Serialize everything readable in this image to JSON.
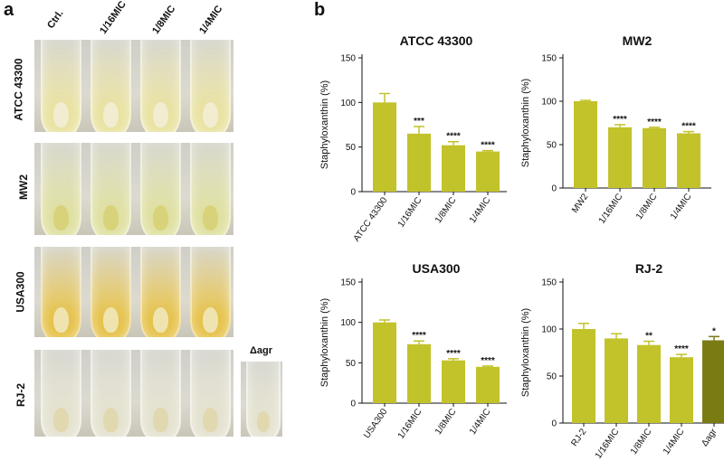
{
  "panels": {
    "a": "a",
    "b": "b"
  },
  "photos": {
    "columns": [
      "Ctrl.",
      "1/16MIC",
      "1/8MIC",
      "1/4MIC"
    ],
    "extra_column": "Δagr",
    "rows": [
      {
        "label": "ATCC 43300",
        "tint": "#e9e2a0",
        "pellet": "#f2ecd0"
      },
      {
        "label": "MW2",
        "tint": "#dfe0a0",
        "pellet": "#d8d37a"
      },
      {
        "label": "USA300",
        "tint": "#e6c24a",
        "pellet": "#efe4b0"
      },
      {
        "label": "RJ-2",
        "tint": "#e4e2cf",
        "pellet": "#e2d8b0"
      }
    ]
  },
  "colors": {
    "bar": "#c2c22a",
    "bar_dark": "#7b7b14",
    "axis": "#111111"
  },
  "chart_data": [
    {
      "type": "bar",
      "title": "ATCC 43300",
      "ylabel": "Staphyloxanthin (%)",
      "ylim": [
        0,
        150
      ],
      "yticks": [
        "0",
        "50",
        "100",
        "150"
      ],
      "categories": [
        "ATCC 43300",
        "1/16MIC",
        "1/8MIC",
        "1/4MIC"
      ],
      "values": [
        100,
        65,
        52,
        45
      ],
      "errors": [
        10,
        8,
        4,
        1
      ],
      "significance": [
        "",
        "***",
        "****",
        "****"
      ]
    },
    {
      "type": "bar",
      "title": "MW2",
      "ylabel": "Staphyloxanthin (%)",
      "ylim": [
        0,
        150
      ],
      "yticks": [
        "0",
        "50",
        "100",
        "150"
      ],
      "categories": [
        "MW2",
        "1/16MIC",
        "1/8MIC",
        "1/4MIC"
      ],
      "values": [
        100,
        70,
        69,
        63
      ],
      "errors": [
        1,
        3,
        1,
        2
      ],
      "significance": [
        "",
        "****",
        "****",
        "****"
      ]
    },
    {
      "type": "bar",
      "title": "USA300",
      "ylabel": "Staphyloxanthin (%)",
      "ylim": [
        0,
        150
      ],
      "yticks": [
        "0",
        "50",
        "100",
        "150"
      ],
      "categories": [
        "USA300",
        "1/16MIC",
        "1/8MIC",
        "1/4MIC"
      ],
      "values": [
        100,
        73,
        53,
        45
      ],
      "errors": [
        3,
        4,
        2,
        1
      ],
      "significance": [
        "",
        "****",
        "****",
        "****"
      ]
    },
    {
      "type": "bar",
      "title": "RJ-2",
      "ylabel": "Staphyloxanthin (%)",
      "ylim": [
        0,
        150
      ],
      "yticks": [
        "0",
        "50",
        "100",
        "150"
      ],
      "categories": [
        "RJ-2",
        "1/16MIC",
        "1/8MIC",
        "1/4MIC",
        "Δagr"
      ],
      "values": [
        100,
        90,
        83,
        70,
        88
      ],
      "errors": [
        6,
        5,
        4,
        3,
        4
      ],
      "significance": [
        "",
        "",
        "**",
        "****",
        "*"
      ],
      "dark_last": true
    }
  ]
}
